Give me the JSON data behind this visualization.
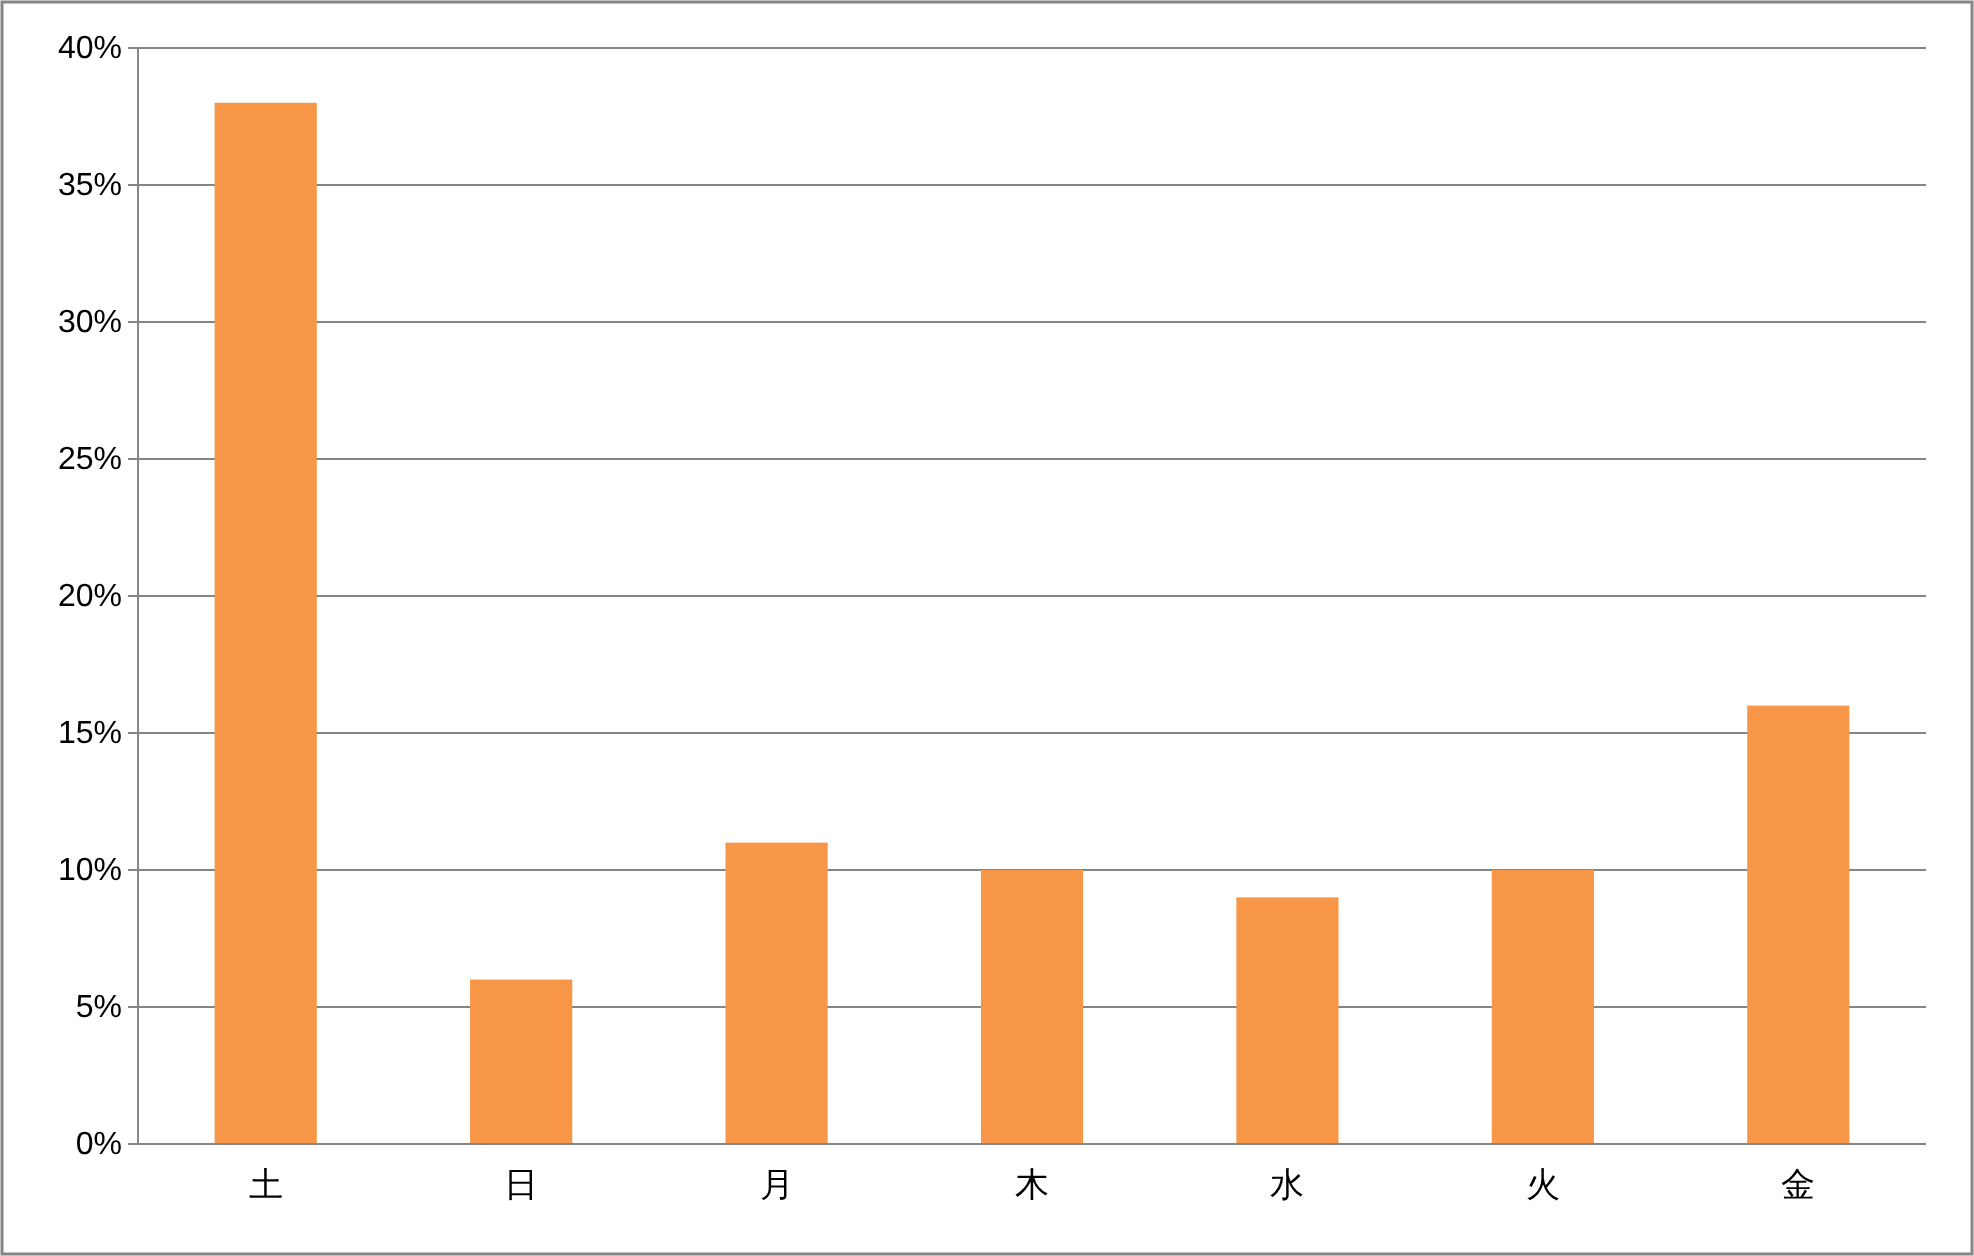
{
  "chart_data": {
    "type": "bar",
    "categories": [
      "土",
      "日",
      "月",
      "木",
      "水",
      "火",
      "金"
    ],
    "values": [
      38,
      6,
      11,
      10,
      9,
      10,
      16
    ],
    "color": "#f79646",
    "ylim": [
      0,
      40
    ],
    "yticks": [
      {
        "value": 0,
        "label": "0%"
      },
      {
        "value": 5,
        "label": "5%"
      },
      {
        "value": 10,
        "label": "10%"
      },
      {
        "value": 15,
        "label": "15%"
      },
      {
        "value": 20,
        "label": "20%"
      },
      {
        "value": 25,
        "label": "25%"
      },
      {
        "value": 30,
        "label": "30%"
      },
      {
        "value": 35,
        "label": "35%"
      },
      {
        "value": 40,
        "label": "40%"
      }
    ],
    "grid": "y"
  }
}
